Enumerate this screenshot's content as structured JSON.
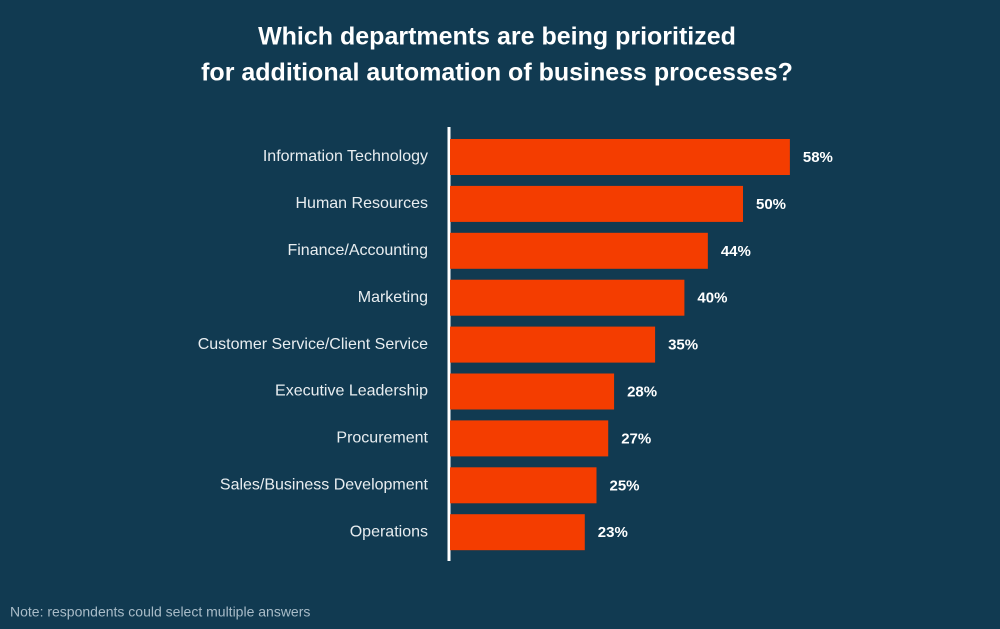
{
  "chart_data": {
    "type": "bar",
    "orientation": "horizontal",
    "title": [
      "Which departments are being prioritized",
      "for additional automation of business processes?"
    ],
    "categories": [
      "Information Technology",
      "Human Resources",
      "Finance/Accounting",
      "Marketing",
      "Customer Service/Client Service",
      "Executive Leadership",
      "Procurement",
      "Sales/Business Development",
      "Operations"
    ],
    "values": [
      58,
      50,
      44,
      40,
      35,
      28,
      27,
      25,
      23
    ],
    "value_labels": [
      "58%",
      "50%",
      "44%",
      "40%",
      "35%",
      "28%",
      "27%",
      "25%",
      "23%"
    ],
    "color": "#f43d00",
    "note": "Note: respondents could select multiple answers"
  }
}
